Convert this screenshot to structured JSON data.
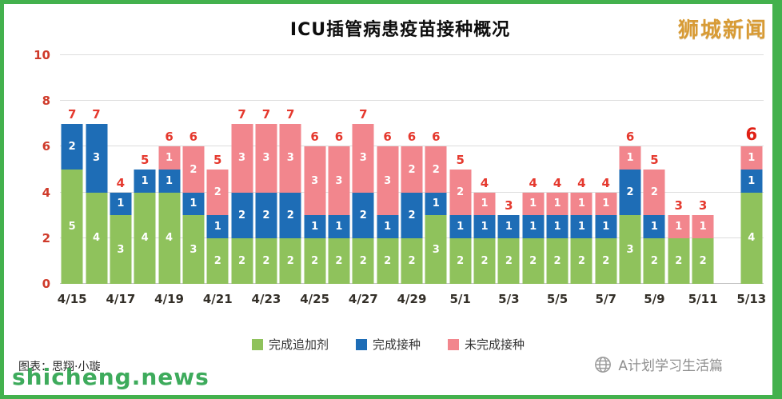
{
  "page": {
    "title": "ICU插管病患疫苗接种概况",
    "logo": "狮城新闻",
    "credit": "图表：思翔·小璇",
    "watermark": "shicheng.news",
    "attribution": "A计划学习生活篇",
    "attribution_icon": "globe-icon"
  },
  "colors": {
    "frame_green": "#43b14d",
    "booster_green": "#8fc25c",
    "fully_vaccinated_blue": "#1e6db6",
    "not_fully_vaccinated_pink": "#f2868d",
    "total_label_red": "#e5392e",
    "logo_gold": "#d89b35",
    "watermark_green": "#2ea44f"
  },
  "chart_data": {
    "type": "bar",
    "stacked": true,
    "title": "ICU插管病患疫苗接种概况",
    "xlabel": "",
    "ylabel": "",
    "ylim": [
      0,
      10
    ],
    "yticks": [
      0,
      2,
      4,
      6,
      8,
      10
    ],
    "grid": true,
    "legend_position": "bottom",
    "x_tick_step": 2,
    "categories": [
      "4/15",
      "4/16",
      "4/17",
      "4/18",
      "4/19",
      "4/20",
      "4/21",
      "4/22",
      "4/23",
      "4/24",
      "4/25",
      "4/26",
      "4/27",
      "4/28",
      "4/29",
      "4/30",
      "5/1",
      "5/2",
      "5/3",
      "5/4",
      "5/5",
      "5/6",
      "5/7",
      "5/8",
      "5/9",
      "5/10",
      "5/11",
      "5/12",
      "5/13"
    ],
    "series": [
      {
        "name": "完成追加剂",
        "color": "#8fc25c",
        "values": [
          5,
          4,
          3,
          4,
          4,
          3,
          2,
          2,
          2,
          2,
          2,
          2,
          2,
          2,
          2,
          3,
          2,
          2,
          2,
          2,
          2,
          2,
          2,
          3,
          2,
          2,
          2,
          null,
          4
        ]
      },
      {
        "name": "完成接种",
        "color": "#1e6db6",
        "values": [
          2,
          3,
          1,
          1,
          1,
          1,
          1,
          2,
          2,
          2,
          1,
          1,
          2,
          1,
          2,
          1,
          1,
          1,
          1,
          1,
          1,
          1,
          1,
          2,
          1,
          0,
          0,
          null,
          1
        ]
      },
      {
        "name": "未完成接种",
        "color": "#f2868d",
        "values": [
          0,
          0,
          0,
          0,
          1,
          2,
          2,
          3,
          3,
          3,
          3,
          3,
          3,
          3,
          2,
          2,
          2,
          1,
          0,
          1,
          1,
          1,
          1,
          1,
          2,
          1,
          1,
          null,
          1
        ]
      }
    ],
    "totals": [
      7,
      7,
      4,
      5,
      6,
      6,
      5,
      7,
      7,
      7,
      6,
      6,
      7,
      6,
      6,
      6,
      5,
      4,
      3,
      4,
      4,
      4,
      4,
      6,
      5,
      3,
      3,
      null,
      6
    ],
    "last_total_emphasized": true
  }
}
